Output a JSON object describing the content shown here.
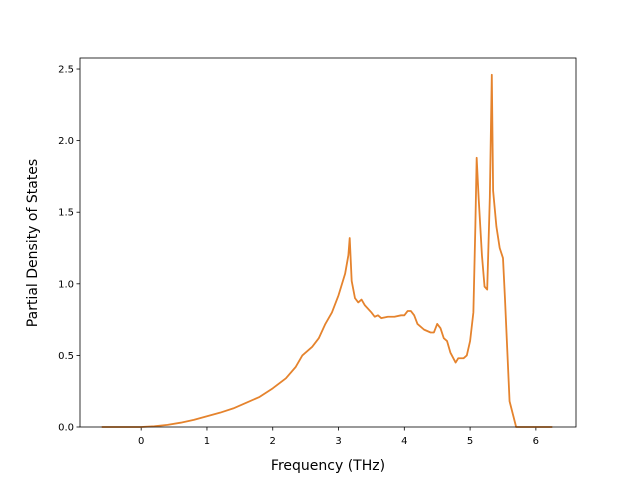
{
  "chart_data": {
    "type": "line",
    "xlabel": "Frequency (THz)",
    "ylabel": "Partial Density of States",
    "x": [
      -0.6,
      0,
      0.2,
      0.4,
      0.6,
      0.8,
      1.0,
      1.2,
      1.4,
      1.6,
      1.8,
      2.0,
      2.2,
      2.35,
      2.45,
      2.6,
      2.7,
      2.8,
      2.9,
      3.0,
      3.1,
      3.15,
      3.17,
      3.2,
      3.25,
      3.3,
      3.35,
      3.4,
      3.5,
      3.55,
      3.6,
      3.65,
      3.75,
      3.85,
      3.95,
      4.0,
      4.05,
      4.1,
      4.15,
      4.2,
      4.3,
      4.4,
      4.45,
      4.5,
      4.55,
      4.6,
      4.65,
      4.7,
      4.78,
      4.82,
      4.9,
      4.95,
      5.0,
      5.05,
      5.08,
      5.1,
      5.13,
      5.18,
      5.22,
      5.26,
      5.3,
      5.33,
      5.35,
      5.4,
      5.45,
      5.5,
      5.53,
      5.6,
      5.7,
      6.25
    ],
    "series": [
      {
        "color": "#e5832d",
        "values": [
          0,
          0,
          0.005,
          0.015,
          0.03,
          0.05,
          0.075,
          0.1,
          0.13,
          0.17,
          0.21,
          0.27,
          0.34,
          0.42,
          0.5,
          0.56,
          0.62,
          0.72,
          0.8,
          0.92,
          1.07,
          1.2,
          1.32,
          1.02,
          0.9,
          0.87,
          0.89,
          0.85,
          0.8,
          0.77,
          0.78,
          0.76,
          0.77,
          0.77,
          0.78,
          0.78,
          0.81,
          0.81,
          0.78,
          0.72,
          0.68,
          0.66,
          0.66,
          0.72,
          0.69,
          0.62,
          0.6,
          0.52,
          0.45,
          0.48,
          0.48,
          0.5,
          0.6,
          0.8,
          1.4,
          1.88,
          1.6,
          1.2,
          0.98,
          0.96,
          1.6,
          2.46,
          1.65,
          1.4,
          1.25,
          1.18,
          0.9,
          0.18,
          0.0,
          0
        ]
      }
    ],
    "xlim": [
      -0.93,
      6.61
    ],
    "ylim": [
      0,
      2.577
    ],
    "xticks": [
      0,
      1,
      2,
      3,
      4,
      5,
      6
    ],
    "yticks": [
      {
        "value": 0,
        "label": "0.0"
      },
      {
        "value": 0.5,
        "label": "0.5"
      },
      {
        "value": 1,
        "label": "1.0"
      },
      {
        "value": 1.5,
        "label": "1.5"
      },
      {
        "value": 2,
        "label": "2.0"
      },
      {
        "value": 2.5,
        "label": "2.5"
      }
    ],
    "grid": false
  }
}
